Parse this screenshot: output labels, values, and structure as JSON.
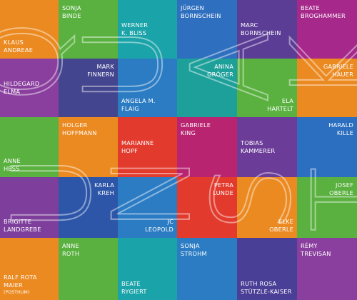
{
  "artists": [
    {
      "lines": [
        "KLAUS",
        "ANDREAE"
      ],
      "color": "#ec8a22",
      "v": "bottom",
      "h": "left"
    },
    {
      "lines": [
        "SONJA",
        "BINDE"
      ],
      "color": "#5ab140",
      "v": "top",
      "h": "left"
    },
    {
      "lines": [
        "WERNER",
        "K. BLISS"
      ],
      "color": "#1aa3a8",
      "v": "mid",
      "h": "left"
    },
    {
      "lines": [
        "JÜRGEN",
        "BORNSCHEIN"
      ],
      "color": "#2f6fbf",
      "v": "top",
      "h": "left"
    },
    {
      "lines": [
        "MARC",
        "BORNSCHEIN"
      ],
      "color": "#5b3d96",
      "v": "mid",
      "h": "left"
    },
    {
      "lines": [
        "BEATE",
        "BROGHAMMER"
      ],
      "color": "#a5288a",
      "v": "top",
      "h": "left"
    },
    {
      "lines": [
        "HILDEGARD",
        "ELMA"
      ],
      "color": "#8a3f9e",
      "v": "mid",
      "h": "left"
    },
    {
      "lines": [
        "MARK",
        "FINNERN"
      ],
      "color": "#43458f",
      "v": "top",
      "h": "right"
    },
    {
      "lines": [
        "ANGELA M.",
        "FLAIG"
      ],
      "color": "#2c7cc4",
      "v": "bottom",
      "h": "left"
    },
    {
      "lines": [
        "ANINA",
        "GRÖGER"
      ],
      "color": "#1d9f9a",
      "v": "top",
      "h": "right"
    },
    {
      "lines": [
        "ELA",
        "HARTELT"
      ],
      "color": "#5ab140",
      "v": "bottom",
      "h": "right"
    },
    {
      "lines": [
        "GABRIELE",
        "HAUER"
      ],
      "color": "#ec8a22",
      "v": "top",
      "h": "right"
    },
    {
      "lines": [
        "ANNE",
        "HESS"
      ],
      "color": "#5ab140",
      "v": "bottom",
      "h": "left"
    },
    {
      "lines": [
        "HOLGER",
        "HOFFMANN"
      ],
      "color": "#ec8a22",
      "v": "top",
      "h": "left"
    },
    {
      "lines": [
        "MARIANNE",
        "HOPF"
      ],
      "color": "#e23b2e",
      "v": "mid",
      "h": "left"
    },
    {
      "lines": [
        "GABRIELE",
        "KING"
      ],
      "color": "#b8246f",
      "v": "top",
      "h": "left"
    },
    {
      "lines": [
        "TOBIAS",
        "KAMMERER"
      ],
      "color": "#6b3c98",
      "v": "mid",
      "h": "left"
    },
    {
      "lines": [
        "HARALD",
        "KILLE"
      ],
      "color": "#2c6fc0",
      "v": "top",
      "h": "right"
    },
    {
      "lines": [
        "BRIGITTE",
        "LANDGREBE"
      ],
      "color": "#7e3f9c",
      "v": "bottom",
      "h": "left"
    },
    {
      "lines": [
        "KARLA",
        "KREH"
      ],
      "color": "#2d56a8",
      "v": "top",
      "h": "right"
    },
    {
      "lines": [
        "JC",
        "LEOPOLD"
      ],
      "color": "#2c7cc4",
      "v": "bottom",
      "h": "right"
    },
    {
      "lines": [
        "PETRA",
        "LUNDE"
      ],
      "color": "#e23b2e",
      "v": "top",
      "h": "right"
    },
    {
      "lines": [
        "ELKE",
        "OBERLE"
      ],
      "color": "#ec8a22",
      "v": "bottom",
      "h": "right"
    },
    {
      "lines": [
        "JOSEF",
        "OBERLE"
      ],
      "color": "#5ab140",
      "v": "top",
      "h": "right"
    },
    {
      "lines": [
        "RALF ROTA",
        "MAIER",
        "(POSTHUM)"
      ],
      "color": "#ec8a22",
      "v": "bottom",
      "h": "left"
    },
    {
      "lines": [
        "ANNE",
        "ROTH"
      ],
      "color": "#5ab140",
      "v": "top",
      "h": "left"
    },
    {
      "lines": [
        "BEATE",
        "RYGIERT"
      ],
      "color": "#1aa3a8",
      "v": "bottom",
      "h": "left"
    },
    {
      "lines": [
        "SONJA",
        "STROHM"
      ],
      "color": "#2c7cc4",
      "v": "top",
      "h": "left"
    },
    {
      "lines": [
        "RUTH ROSA",
        "STÜTZLE-KAISER"
      ],
      "color": "#4a3f96",
      "v": "bottom",
      "h": "left"
    },
    {
      "lines": [
        "RÉMY",
        "TREVISAN"
      ],
      "color": "#8a3f9e",
      "v": "top",
      "h": "left"
    }
  ],
  "watermark": {
    "letters": [
      "Q",
      "U",
      "A",
      "K",
      "U",
      "N",
      "S",
      "T"
    ]
  }
}
